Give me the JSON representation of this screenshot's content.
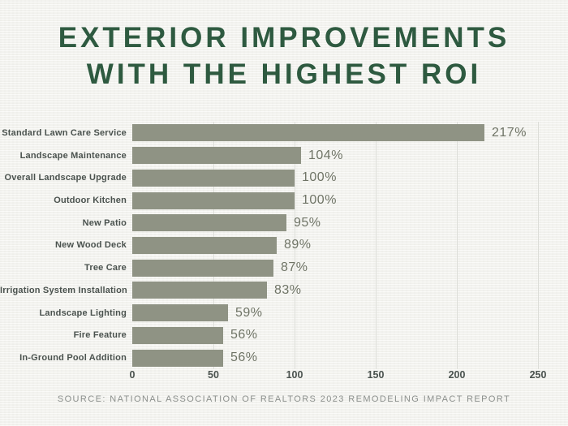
{
  "title": {
    "line1": "EXTERIOR IMPROVEMENTS",
    "line2": "WITH THE HIGHEST ROI"
  },
  "source": "SOURCE: NATIONAL ASSOCIATION OF REALTORS 2023 REMODELING IMPACT REPORT",
  "colors": {
    "bg": "#f3f3ef",
    "bar": "#8f9384",
    "title": "#2e5a40",
    "label": "#4a524e",
    "value": "#6f7466",
    "grid": "#dcddd8",
    "source": "#8c908d"
  },
  "chart_data": {
    "type": "bar",
    "orientation": "horizontal",
    "title": "EXTERIOR IMPROVEMENTS WITH THE HIGHEST ROI",
    "categories": [
      "Standard Lawn Care Service",
      "Landscape Maintenance",
      "Overall Landscape Upgrade",
      "Outdoor Kitchen",
      "New Patio",
      "New Wood Deck",
      "Tree Care",
      "Irrigation System Installation",
      "Landscape Lighting",
      "Fire Feature",
      "In-Ground Pool Addition"
    ],
    "values": [
      217,
      104,
      100,
      100,
      95,
      89,
      87,
      83,
      59,
      56,
      56
    ],
    "value_labels": [
      "217%",
      "104%",
      "100%",
      "100%",
      "95%",
      "89%",
      "87%",
      "83%",
      "59%",
      "56%",
      "56%"
    ],
    "x_ticks": [
      "0",
      "50",
      "100",
      "150",
      "200",
      "250"
    ],
    "xlim": [
      0,
      250
    ],
    "grid": "vertical",
    "legend": "none",
    "xlabel": "",
    "ylabel": ""
  }
}
